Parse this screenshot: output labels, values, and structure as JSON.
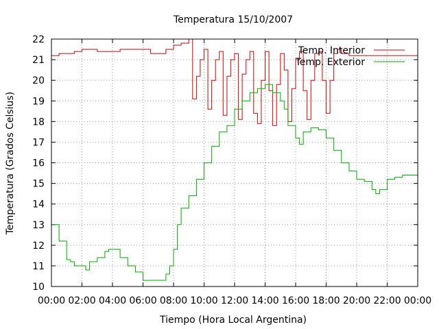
{
  "chart_data": {
    "type": "line",
    "title": "Temperatura 15/10/2007",
    "xlabel": "Tiempo (Hora Local Argentina)",
    "ylabel": "Temperatura (Grados Celsius)",
    "xlim": [
      0,
      24
    ],
    "ylim": [
      10,
      22
    ],
    "grid": true,
    "legend_position": "top-right",
    "x_tick_labels": [
      "00:00",
      "02:00",
      "04:00",
      "06:00",
      "08:00",
      "10:00",
      "12:00",
      "14:00",
      "16:00",
      "18:00",
      "20:00",
      "22:00",
      "00:00"
    ],
    "y_tick_labels": [
      "10",
      "11",
      "12",
      "13",
      "14",
      "15",
      "16",
      "17",
      "18",
      "19",
      "20",
      "21",
      "22"
    ],
    "series": [
      {
        "name": "Temp. Interior",
        "color": "#cc0000",
        "x": [
          0,
          0.5,
          1,
          1.5,
          2,
          2.5,
          3,
          3.5,
          4,
          4.5,
          5,
          5.5,
          6,
          6.5,
          7,
          7.5,
          8,
          8.5,
          9,
          9.25,
          9.5,
          9.75,
          10,
          10.25,
          10.5,
          10.75,
          11,
          11.25,
          11.5,
          11.75,
          12,
          12.25,
          12.5,
          12.75,
          13,
          13.25,
          13.5,
          13.75,
          14,
          14.25,
          14.5,
          14.75,
          15,
          15.25,
          15.5,
          15.75,
          16,
          16.25,
          16.5,
          16.75,
          17,
          17.25,
          17.5,
          17.75,
          18,
          18.25,
          18.5,
          18.75,
          19,
          19.5,
          20,
          20.5,
          21,
          21.5,
          22,
          22.5,
          23,
          23.5,
          24
        ],
        "y": [
          21.2,
          21.3,
          21.3,
          21.4,
          21.5,
          21.5,
          21.4,
          21.4,
          21.4,
          21.5,
          21.5,
          21.5,
          21.5,
          21.3,
          21.3,
          21.5,
          21.7,
          21.8,
          22.0,
          19.1,
          20.2,
          21.0,
          21.5,
          18.6,
          20.0,
          21.0,
          21.4,
          18.3,
          20.2,
          21.0,
          21.3,
          18.1,
          20.3,
          21.0,
          21.4,
          18.4,
          17.9,
          20.0,
          21.4,
          19.5,
          17.8,
          19.8,
          21.3,
          20.5,
          18.0,
          19.6,
          21.0,
          21.4,
          19.5,
          18.1,
          20.0,
          21.3,
          21.4,
          20.0,
          18.4,
          20.0,
          21.3,
          21.5,
          21.3,
          21.2,
          21.2,
          21.2,
          21.2,
          21.2,
          21.2,
          21.2,
          21.2,
          21.2,
          21.2
        ]
      },
      {
        "name": "Temp. Exterior",
        "color": "#00aa00",
        "x": [
          0,
          0.5,
          1,
          1.25,
          1.5,
          2,
          2.25,
          2.5,
          3,
          3.5,
          3.75,
          4,
          4.25,
          4.5,
          5,
          5.5,
          6,
          6.5,
          7,
          7.5,
          7.75,
          8,
          8.25,
          8.5,
          9,
          9.5,
          10,
          10.5,
          11,
          11.5,
          12,
          12.5,
          13,
          13.5,
          14,
          14.5,
          15,
          15.25,
          15.5,
          16,
          16.25,
          16.5,
          17,
          17.5,
          18,
          18.5,
          19,
          19.5,
          20,
          20.5,
          21,
          21.25,
          21.5,
          22,
          22.5,
          23,
          23.5,
          24
        ],
        "y": [
          13.0,
          12.2,
          11.3,
          11.2,
          11.0,
          11.0,
          10.8,
          11.2,
          11.4,
          11.7,
          11.8,
          11.8,
          11.8,
          11.4,
          11.0,
          10.7,
          10.3,
          10.3,
          10.3,
          10.6,
          11.0,
          11.8,
          13.0,
          13.8,
          14.4,
          15.2,
          16.0,
          16.8,
          17.5,
          17.8,
          18.6,
          19.0,
          19.4,
          19.6,
          19.8,
          19.4,
          19.0,
          18.6,
          17.8,
          17.2,
          16.9,
          17.5,
          17.7,
          17.6,
          17.2,
          16.6,
          16.0,
          15.6,
          15.2,
          15.1,
          14.7,
          14.5,
          14.7,
          15.2,
          15.3,
          15.4,
          15.4,
          15.5
        ]
      }
    ]
  }
}
